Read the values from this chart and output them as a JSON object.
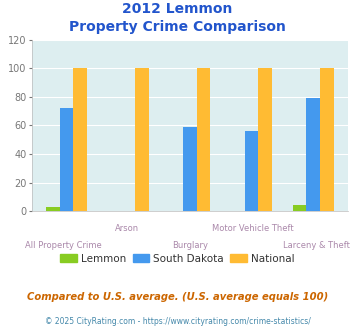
{
  "title_line1": "2012 Lemmon",
  "title_line2": "Property Crime Comparison",
  "categories": [
    "All Property Crime",
    "Arson",
    "Burglary",
    "Motor Vehicle Theft",
    "Larceny & Theft"
  ],
  "cat_row": [
    1,
    0,
    1,
    0,
    1
  ],
  "lemmon": [
    3,
    0,
    0,
    0,
    4
  ],
  "south_dakota": [
    72,
    0,
    59,
    56,
    79
  ],
  "national": [
    100,
    100,
    100,
    100,
    100
  ],
  "lemmon_color": "#88cc22",
  "south_dakota_color": "#4499ee",
  "national_color": "#ffbb33",
  "bg_color": "#ddeef0",
  "ylim": [
    0,
    120
  ],
  "yticks": [
    0,
    20,
    40,
    60,
    80,
    100,
    120
  ],
  "title_color": "#2255cc",
  "xlabel_color": "#aa88aa",
  "footer_note": "Compared to U.S. average. (U.S. average equals 100)",
  "footer_credit": "© 2025 CityRating.com - https://www.cityrating.com/crime-statistics/",
  "legend_labels": [
    "Lemmon",
    "South Dakota",
    "National"
  ],
  "bar_width": 0.22
}
